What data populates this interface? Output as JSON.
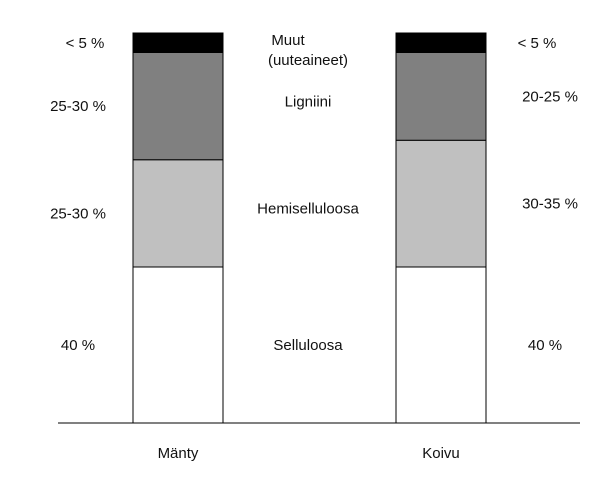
{
  "chart_data": {
    "type": "bar",
    "stacked": true,
    "categories": [
      "Mänty",
      "Koivu"
    ],
    "ylim": [
      0,
      100
    ],
    "grid": false,
    "legend": "inline-center",
    "series": [
      {
        "name": "Selluloosa",
        "values": [
          40,
          40
        ],
        "color": "#ffffff",
        "labels": [
          "40 %",
          "40 %"
        ]
      },
      {
        "name": "Hemiselluloosa",
        "values": [
          27.5,
          32.5
        ],
        "color": "#c0c0c0",
        "labels": [
          "25-30 %",
          "30-35 %"
        ]
      },
      {
        "name": "Ligniini",
        "values": [
          27.5,
          22.5
        ],
        "color": "#808080",
        "labels": [
          "25-30 %",
          "20-25 %"
        ]
      },
      {
        "name": "Muut (uuteaineet)",
        "name_lines": [
          "Muut",
          "(uuteaineet)"
        ],
        "values": [
          5,
          5
        ],
        "color": "#000000",
        "labels": [
          "< 5 %",
          "< 5 %"
        ]
      }
    ]
  }
}
